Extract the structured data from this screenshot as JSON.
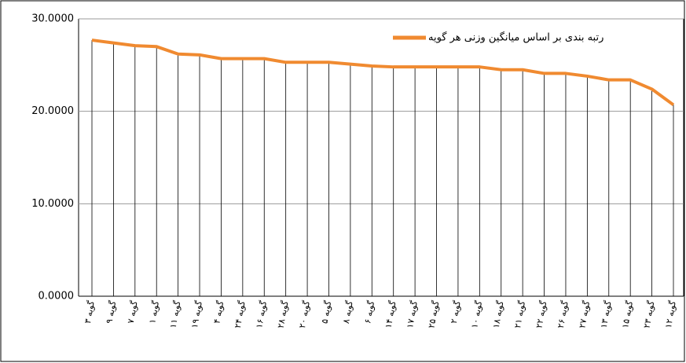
{
  "chart_data": {
    "type": "line",
    "categories": [
      "گویه ۳",
      "گویه ۹",
      "گویه ۷",
      "گویه ۱",
      "گویه ۱۱",
      "گویه ۱۹",
      "گویه ۴",
      "گویه ۲۴",
      "گویه ۱۶",
      "گویه ۲۸",
      "گویه ۲۰",
      "گویه ۵",
      "گویه ۸",
      "گویه ۶",
      "گویه ۱۴",
      "گویه ۱۷",
      "گویه ۲۵",
      "گویه ۲",
      "گویه ۱۰",
      "گویه ۱۸",
      "گویه ۲۱",
      "گویه ۲۲",
      "گویه ۲۶",
      "گویه ۲۷",
      "گویه ۱۳",
      "گویه ۱۵",
      "گویه ۲۳",
      "گویه ۱۲"
    ],
    "series": [
      {
        "name": "رتبه بندی بر اساس میانگین وزنی هر گویه",
        "color": "#f08a30",
        "values": [
          27.7,
          27.4,
          27.1,
          27.0,
          26.2,
          26.1,
          25.7,
          25.7,
          25.7,
          25.3,
          25.3,
          25.3,
          25.1,
          24.9,
          24.8,
          24.8,
          24.8,
          24.8,
          24.8,
          24.5,
          24.5,
          24.1,
          24.1,
          23.8,
          23.4,
          23.4,
          22.4,
          20.7
        ]
      }
    ],
    "ylim": [
      0,
      30
    ],
    "yticks": [
      {
        "value": 0,
        "label": "0.0000"
      },
      {
        "value": 10,
        "label": "10.0000"
      },
      {
        "value": 20,
        "label": "20.0000"
      },
      {
        "value": 30,
        "label": "30.0000"
      }
    ],
    "grid": true,
    "drop_lines": true
  }
}
